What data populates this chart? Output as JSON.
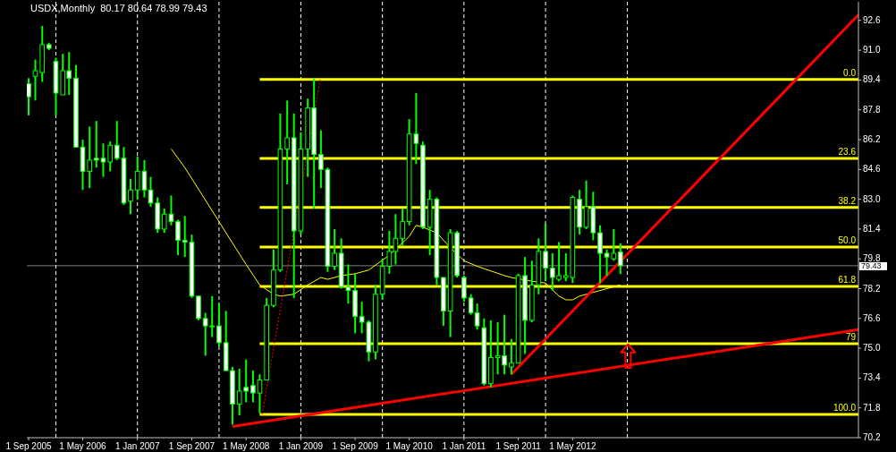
{
  "chart_data": {
    "type": "candlestick",
    "title": "USDX,Monthly  80.17 80.64 78.99 79.43",
    "x": [
      "2005-09",
      "2005-10",
      "2005-11",
      "2005-12",
      "2006-01",
      "2006-02",
      "2006-03",
      "2006-04",
      "2006-05",
      "2006-06",
      "2006-07",
      "2006-08",
      "2006-09",
      "2006-10",
      "2006-11",
      "2006-12",
      "2007-01",
      "2007-02",
      "2007-03",
      "2007-04",
      "2007-05",
      "2007-06",
      "2007-07",
      "2007-08",
      "2007-09",
      "2007-10",
      "2007-11",
      "2007-12",
      "2008-01",
      "2008-02",
      "2008-03",
      "2008-04",
      "2008-05",
      "2008-06",
      "2008-07",
      "2008-08",
      "2008-09",
      "2008-10",
      "2008-11",
      "2008-12",
      "2009-01",
      "2009-02",
      "2009-03",
      "2009-04",
      "2009-05",
      "2009-06",
      "2009-07",
      "2009-08",
      "2009-09",
      "2009-10",
      "2009-11",
      "2009-12",
      "2010-01",
      "2010-02",
      "2010-03",
      "2010-04",
      "2010-05",
      "2010-06",
      "2010-07",
      "2010-08",
      "2010-09",
      "2010-10",
      "2010-11",
      "2010-12",
      "2011-01",
      "2011-02",
      "2011-03",
      "2011-04",
      "2011-05",
      "2011-06",
      "2011-07",
      "2011-08",
      "2011-09",
      "2011-10",
      "2011-11",
      "2011-12",
      "2012-01",
      "2012-02",
      "2012-03",
      "2012-04",
      "2012-05",
      "2012-06",
      "2012-07",
      "2012-08",
      "2012-09",
      "2012-10",
      "2012-11",
      "2012-12"
    ],
    "ohlc": [
      [
        89.2,
        89.5,
        87.5,
        88.5
      ],
      [
        89.6,
        90.5,
        88.3,
        89.9
      ],
      [
        89.8,
        92.3,
        89.3,
        91.3
      ],
      [
        91.3,
        91.4,
        91.0,
        91.1
      ],
      [
        90.4,
        90.6,
        87.5,
        88.7
      ],
      [
        88.6,
        90.8,
        88.6,
        89.9
      ],
      [
        89.9,
        90.9,
        88.6,
        89.5
      ],
      [
        89.5,
        90.2,
        85.8,
        85.8
      ],
      [
        85.8,
        86.2,
        83.5,
        84.5
      ],
      [
        84.5,
        86.9,
        83.6,
        85.1
      ],
      [
        85.2,
        87.2,
        84.7,
        85.1
      ],
      [
        85.2,
        86.0,
        84.2,
        85.0
      ],
      [
        85.0,
        86.1,
        84.5,
        85.9
      ],
      [
        85.9,
        87.2,
        85.1,
        85.2
      ],
      [
        85.2,
        85.8,
        82.7,
        82.8
      ],
      [
        82.9,
        84.1,
        82.2,
        83.5
      ],
      [
        83.5,
        85.3,
        83.0,
        84.5
      ],
      [
        84.5,
        85.1,
        83.1,
        83.5
      ],
      [
        83.5,
        84.2,
        82.6,
        82.8
      ],
      [
        82.8,
        83.1,
        81.2,
        81.4
      ],
      [
        81.4,
        82.5,
        81.2,
        82.2
      ],
      [
        82.2,
        83.2,
        81.6,
        81.8
      ],
      [
        81.8,
        81.9,
        80.0,
        80.8
      ],
      [
        80.8,
        82.1,
        79.9,
        80.7
      ],
      [
        80.7,
        81.1,
        77.7,
        77.8
      ],
      [
        77.8,
        77.8,
        76.5,
        76.6
      ],
      [
        76.6,
        76.9,
        74.6,
        76.2
      ],
      [
        76.2,
        77.8,
        75.6,
        76.2
      ],
      [
        76.2,
        77.4,
        75.1,
        75.3
      ],
      [
        75.3,
        77.0,
        73.8,
        73.8
      ],
      [
        73.8,
        74.0,
        70.9,
        72.0
      ],
      [
        72.0,
        73.9,
        71.4,
        72.7
      ],
      [
        72.9,
        74.4,
        72.1,
        72.7
      ],
      [
        73.0,
        73.8,
        72.1,
        72.6
      ],
      [
        72.6,
        73.6,
        71.5,
        73.3
      ],
      [
        73.3,
        77.7,
        73.3,
        77.3
      ],
      [
        77.3,
        80.3,
        77.2,
        79.2
      ],
      [
        79.2,
        87.6,
        79.1,
        85.7
      ],
      [
        85.7,
        88.3,
        83.8,
        86.3
      ],
      [
        86.3,
        87.6,
        77.7,
        81.3
      ],
      [
        81.3,
        86.6,
        81.1,
        85.7
      ],
      [
        85.7,
        88.4,
        84.2,
        87.9
      ],
      [
        87.9,
        89.5,
        82.5,
        85.4
      ],
      [
        85.4,
        86.7,
        83.6,
        84.6
      ],
      [
        84.6,
        84.7,
        79.1,
        79.4
      ],
      [
        79.4,
        81.4,
        79.2,
        80.1
      ],
      [
        80.1,
        80.9,
        78.2,
        78.3
      ],
      [
        78.3,
        79.5,
        77.4,
        78.1
      ],
      [
        78.1,
        79.0,
        75.8,
        76.7
      ],
      [
        76.7,
        77.5,
        75.8,
        76.4
      ],
      [
        76.4,
        76.5,
        74.3,
        74.8
      ],
      [
        74.8,
        78.4,
        74.4,
        77.9
      ],
      [
        77.9,
        79.8,
        77.6,
        79.4
      ],
      [
        79.4,
        81.3,
        79.0,
        80.2
      ],
      [
        80.2,
        82.2,
        79.5,
        80.9
      ],
      [
        80.9,
        82.5,
        80.5,
        81.8
      ],
      [
        81.8,
        87.3,
        81.6,
        86.5
      ],
      [
        86.5,
        88.7,
        84.9,
        86.0
      ],
      [
        85.9,
        86.1,
        81.4,
        81.5
      ],
      [
        81.5,
        83.5,
        80.0,
        83.0
      ],
      [
        83.0,
        83.1,
        78.4,
        78.8
      ],
      [
        78.8,
        78.8,
        76.2,
        77.0
      ],
      [
        77.0,
        81.4,
        75.6,
        81.2
      ],
      [
        81.2,
        81.3,
        78.8,
        78.9
      ],
      [
        78.8,
        78.9,
        77.5,
        77.7
      ],
      [
        77.7,
        77.9,
        76.8,
        76.9
      ],
      [
        76.9,
        77.4,
        76.0,
        76.2
      ],
      [
        76.1,
        76.6,
        73.0,
        73.1
      ],
      [
        73.1,
        76.5,
        72.9,
        74.5
      ],
      [
        74.5,
        76.4,
        73.6,
        74.6
      ],
      [
        74.6,
        76.8,
        73.6,
        74.1
      ],
      [
        74.0,
        75.5,
        73.6,
        74.2
      ],
      [
        74.2,
        79.0,
        74.2,
        78.9
      ],
      [
        78.9,
        79.9,
        74.7,
        76.5
      ],
      [
        76.5,
        79.7,
        76.4,
        78.4
      ],
      [
        78.4,
        80.9,
        77.9,
        80.2
      ],
      [
        80.2,
        81.7,
        78.6,
        79.3
      ],
      [
        79.3,
        80.1,
        78.1,
        78.8
      ],
      [
        78.7,
        80.7,
        78.6,
        78.9
      ],
      [
        78.8,
        80.1,
        78.6,
        78.9
      ],
      [
        78.8,
        83.2,
        78.5,
        83.1
      ],
      [
        83.0,
        83.5,
        81.1,
        81.5
      ],
      [
        81.5,
        84.0,
        81.4,
        82.6
      ],
      [
        82.6,
        83.4,
        80.8,
        81.2
      ],
      [
        81.2,
        81.6,
        78.5,
        80.1
      ],
      [
        80.1,
        80.3,
        78.9,
        79.9
      ],
      [
        79.8,
        81.4,
        79.7,
        80.1
      ],
      [
        80.17,
        80.64,
        78.99,
        79.43
      ]
    ],
    "series": [
      {
        "type": "line",
        "color": "#ffff00",
        "x": [
          "2007-06",
          "2007-08",
          "2008-01",
          "2008-02",
          "2008-05",
          "2008-07",
          "2008-09",
          "2008-10",
          "2008-12",
          "2009-02",
          "2009-04",
          "2009-05",
          "2009-07",
          "2009-09",
          "2009-11",
          "2010-02",
          "2010-05",
          "2010-06",
          "2010-07",
          "2010-09",
          "2010-11",
          "2011-01",
          "2011-03",
          "2011-07",
          "2011-08",
          "2011-11",
          "2012-01",
          "2012-03",
          "2012-04",
          "2012-05",
          "2012-06",
          "2012-08",
          "2012-10",
          "2012-12"
        ],
        "values": [
          85.7,
          84.7,
          81.8,
          81.2,
          79.5,
          78.4,
          77.9,
          77.8,
          77.9,
          78.4,
          78.8,
          78.7,
          78.9,
          79.0,
          79.2,
          80.0,
          81.0,
          81.6,
          81.5,
          81.2,
          80.4,
          79.7,
          79.4,
          78.9,
          78.8,
          78.6,
          78.5,
          77.8,
          77.6,
          77.6,
          77.8,
          78.0,
          78.2,
          78.4
        ]
      },
      {
        "type": "line",
        "name": "0.0",
        "color": "#ffff00",
        "x": [
          "2008-07",
          "2015-11"
        ],
        "values": [
          89.43,
          89.43
        ]
      },
      {
        "type": "line",
        "name": "23.6",
        "color": "#ffff00",
        "x": [
          "2008-07",
          "2015-11"
        ],
        "values": [
          85.19,
          85.19
        ]
      },
      {
        "type": "line",
        "name": "38.2",
        "color": "#ffff00",
        "x": [
          "2008-07",
          "2015-11"
        ],
        "values": [
          82.56,
          82.56
        ]
      },
      {
        "type": "line",
        "name": "50.0",
        "color": "#ffff00",
        "x": [
          "2008-07",
          "2015-11"
        ],
        "values": [
          80.44,
          80.44
        ]
      },
      {
        "type": "line",
        "name": "61.8",
        "color": "#ffff00",
        "x": [
          "2008-07",
          "2015-11"
        ],
        "values": [
          78.32,
          78.32
        ]
      },
      {
        "type": "line",
        "name": "79",
        "color": "#ffff00",
        "x": [
          "2008-07",
          "2015-11"
        ],
        "values": [
          75.25,
          75.25
        ]
      },
      {
        "type": "line",
        "name": "100.0",
        "color": "#ffff00",
        "x": [
          "2008-07",
          "2015-11"
        ],
        "values": [
          71.45,
          71.45
        ]
      },
      {
        "type": "line",
        "color": "#ff0000",
        "x": [
          "2008-03",
          "2015-11"
        ],
        "values": [
          70.8,
          76.0
        ]
      },
      {
        "type": "line",
        "color": "#ff0000",
        "x": [
          "2011-08",
          "2015-11"
        ],
        "values": [
          73.6,
          92.9
        ]
      },
      {
        "type": "line",
        "color": "#ff0000",
        "line_style": "dotted",
        "x": [
          "2008-07-12",
          "2009-03-28"
        ],
        "values": [
          71.45,
          89.43
        ]
      }
    ],
    "ref_lines": [
      {
        "axis": "y",
        "value": 79.43,
        "label": "79.43",
        "color": "#808080"
      },
      {
        "axis": "x",
        "value": "2006-01",
        "color": "#ffffff",
        "line_style": "dashed"
      },
      {
        "axis": "x",
        "value": "2007-01",
        "color": "#ffffff",
        "line_style": "dashed"
      },
      {
        "axis": "x",
        "value": "2008-01",
        "color": "#ffffff",
        "line_style": "dashed"
      },
      {
        "axis": "x",
        "value": "2009-01",
        "color": "#ffffff",
        "line_style": "dashed"
      },
      {
        "axis": "x",
        "value": "2010-01",
        "color": "#ffffff",
        "line_style": "dashed"
      },
      {
        "axis": "x",
        "value": "2011-01",
        "color": "#ffffff",
        "line_style": "dashed"
      },
      {
        "axis": "x",
        "value": "2012-01",
        "color": "#ffffff",
        "line_style": "dashed"
      },
      {
        "axis": "x",
        "value": "2013-01",
        "color": "#ffffff",
        "line_style": "dashed"
      }
    ],
    "xlim": [
      "2005-08-24",
      "2015-11-01"
    ],
    "xticks": [
      {
        "value": "2005-09-01",
        "label": "1 Sep 2005"
      },
      {
        "value": "2006-05-01",
        "label": "1 May 2006"
      },
      {
        "value": "2007-01-01",
        "label": "1 Jan 2007"
      },
      {
        "value": "2007-09-01",
        "label": "1 Sep 2007"
      },
      {
        "value": "2008-05-01",
        "label": "1 May 2008"
      },
      {
        "value": "2009-01-01",
        "label": "1 Jan 2009"
      },
      {
        "value": "2009-09-01",
        "label": "1 Sep 2009"
      },
      {
        "value": "2010-05-01",
        "label": "1 May 2010"
      },
      {
        "value": "2011-01-01",
        "label": "1 Jan 2011"
      },
      {
        "value": "2011-09-01",
        "label": "1 Sep 2011"
      },
      {
        "value": "2012-05-01",
        "label": "1 May 2012"
      }
    ],
    "ylim": [
      70.2,
      93.6
    ],
    "yticks": [
      {
        "value": 92.6,
        "label": "92.6"
      },
      {
        "value": 91.0,
        "label": "91.0"
      },
      {
        "value": 89.4,
        "label": "89.4"
      },
      {
        "value": 87.8,
        "label": "87.8"
      },
      {
        "value": 86.2,
        "label": "86.2"
      },
      {
        "value": 84.6,
        "label": "84.6"
      },
      {
        "value": 83.0,
        "label": "83.0"
      },
      {
        "value": 81.4,
        "label": "81.4"
      },
      {
        "value": 79.8,
        "label": "79.8"
      },
      {
        "value": 78.2,
        "label": "78.2"
      },
      {
        "value": 76.6,
        "label": "76.6"
      },
      {
        "value": 75.0,
        "label": "75.0"
      },
      {
        "value": 73.4,
        "label": "73.4"
      },
      {
        "value": 71.8,
        "label": "71.8"
      },
      {
        "value": 70.2,
        "label": "70.2"
      }
    ]
  }
}
